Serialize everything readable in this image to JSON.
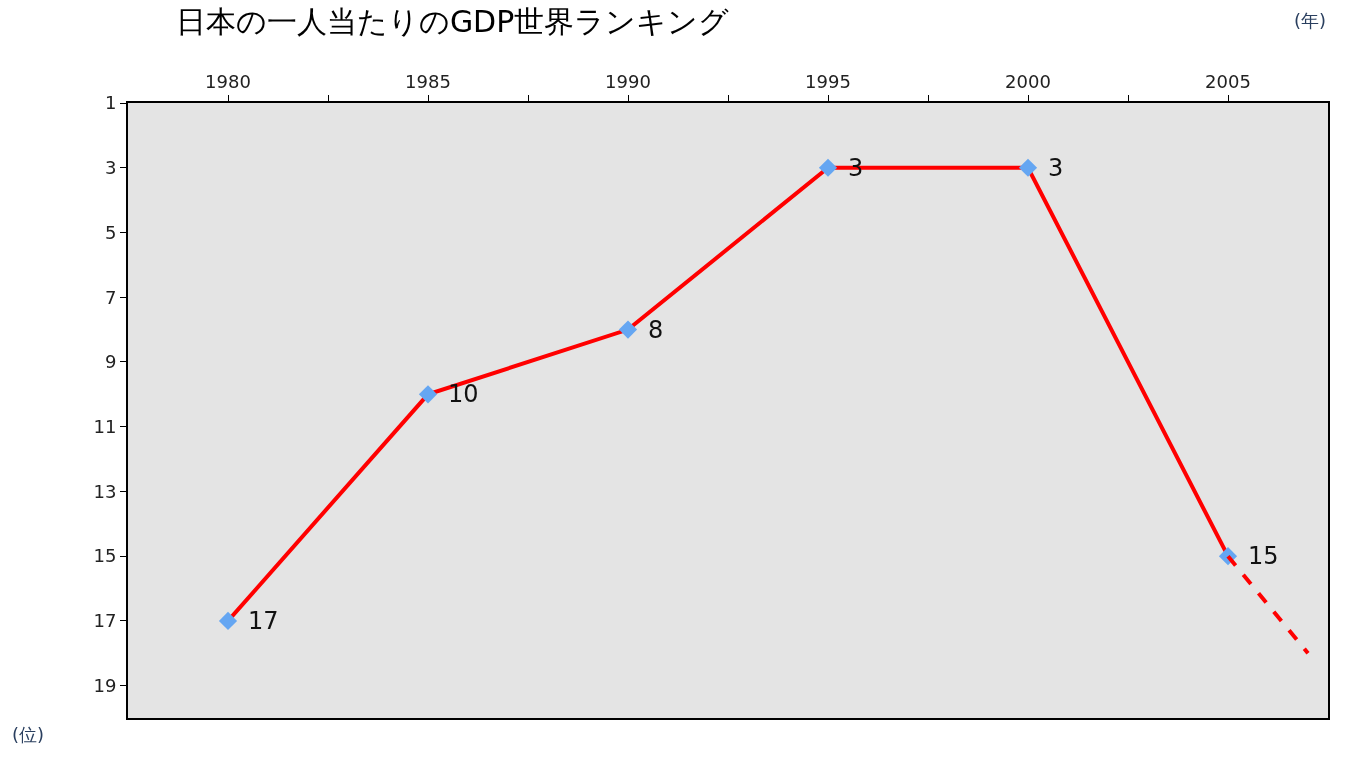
{
  "chart_data": {
    "type": "line",
    "title": "日本の一人当たりのGDP世界ランキング",
    "xlabel": "(年)",
    "ylabel": "(位)",
    "xlim": [
      1977.5,
      2007.5
    ],
    "xticks": [
      1980,
      {
        "value": 1982.5,
        "label": null
      },
      1985,
      {
        "value": 1987.5,
        "label": null
      },
      1990,
      {
        "value": 1992.5,
        "label": null
      },
      1995,
      {
        "value": 1997.5,
        "label": null
      },
      2000,
      {
        "value": 2002.5,
        "label": null
      },
      2005
    ],
    "ylim": [
      20,
      1
    ],
    "yticks": [
      1,
      3,
      5,
      7,
      9,
      11,
      13,
      15,
      17,
      19
    ],
    "series": [
      {
        "color": "#ff0000",
        "x": [
          1980,
          1985,
          1990,
          1995,
          2000,
          2005
        ],
        "values": [
          17,
          10,
          8,
          3,
          3,
          15
        ],
        "marker": "diamond",
        "colors": [
          "#65a6f2",
          "#65a6f2",
          "#65a6f2",
          "#65a6f2",
          "#65a6f2",
          "#65a6f2"
        ],
        "line_style": "solid"
      },
      {
        "color": "#ff0000",
        "x": [
          2005,
          2007
        ],
        "values": [
          15,
          18
        ],
        "marker": "none",
        "line_style": "dashed",
        "value_labels": [
          null,
          null
        ]
      }
    ],
    "data_labels": true,
    "grid": false
  }
}
